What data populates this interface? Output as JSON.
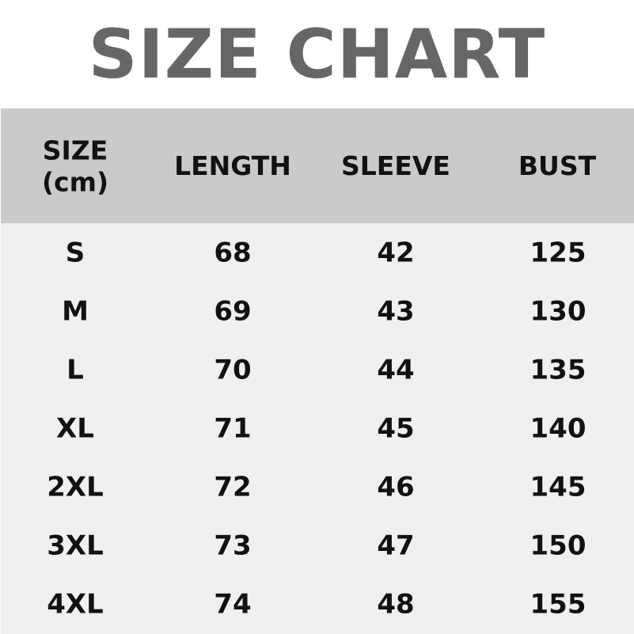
{
  "title": "SIZE CHART",
  "chart_data": {
    "type": "table",
    "headers": [
      "SIZE",
      "LENGTH",
      "SLEEVE",
      "BUST"
    ],
    "unit_label": "(cm)",
    "rows": [
      [
        "S",
        "68",
        "42",
        "125"
      ],
      [
        "M",
        "69",
        "43",
        "130"
      ],
      [
        "L",
        "70",
        "44",
        "135"
      ],
      [
        "XL",
        "71",
        "45",
        "140"
      ],
      [
        "2XL",
        "72",
        "46",
        "145"
      ],
      [
        "3XL",
        "73",
        "47",
        "150"
      ],
      [
        "4XL",
        "74",
        "48",
        "155"
      ]
    ]
  },
  "colors": {
    "title": "#666666",
    "header_bg": "#cacaca",
    "body_bg": "#f0f0f0",
    "text": "#111111"
  }
}
